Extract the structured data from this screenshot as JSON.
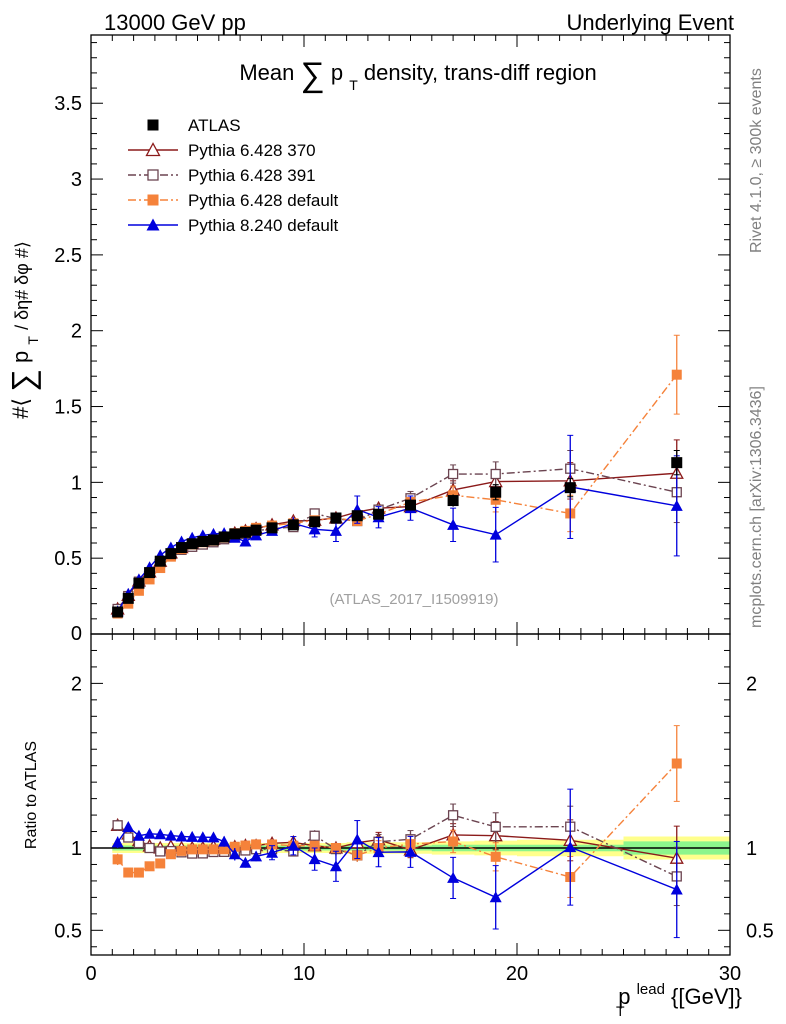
{
  "header": {
    "energy_label": "13000 GeV pp",
    "process_label": "Underlying Event"
  },
  "side_labels": {
    "rivet": "Rivet 4.1.0, ≥ 300k events",
    "mcplots": "mcplots.cern.ch [arXiv:1306.3436]"
  },
  "chart_data": {
    "type": "scatter",
    "title_parts": {
      "before": "Mean",
      "sum": "∑",
      "p": "p",
      "sub": "T",
      "after": "density, trans-diff region"
    },
    "analysis_label": "(ATLAS_2017_I1509919)",
    "xlabel": {
      "main": "p",
      "sup": "lead",
      "sub": "T",
      "unit": "{[GeV]}"
    },
    "ylabel": {
      "open": "#⟨",
      "sum": "∑",
      "p": "p",
      "sub": "T",
      "rest": "/ δη# δφ #⟩"
    },
    "ratio_ylabel": "Ratio to ATLAS",
    "xlim": [
      0,
      30
    ],
    "ylim": [
      0,
      3.95
    ],
    "ratio_ylim": [
      0.35,
      2.3
    ],
    "x_ticks": [
      0,
      10,
      20,
      30
    ],
    "y_ticks": [
      0.5,
      1,
      1.5,
      2,
      2.5,
      3,
      3.5
    ],
    "y_tick_labels": [
      "0.5",
      "1",
      "1.5",
      "2",
      "2.5",
      "3",
      "3.5"
    ],
    "y_zero_label": "0",
    "ratio_ticks": [
      0.5,
      1,
      2
    ],
    "ratio_tick_labels": [
      "0.5",
      "1",
      "2"
    ],
    "legend_position": "top-left",
    "series": [
      {
        "name": "ATLAS",
        "color": "#000000",
        "marker": "filled-square",
        "line": "none",
        "x": [
          1.25,
          1.75,
          2.25,
          2.75,
          3.25,
          3.75,
          4.25,
          4.75,
          5.25,
          5.75,
          6.25,
          6.75,
          7.25,
          7.75,
          8.5,
          9.5,
          10.5,
          11.5,
          12.5,
          13.5,
          15,
          17,
          19,
          22.5,
          27.5
        ],
        "y": [
          0.145,
          0.235,
          0.335,
          0.405,
          0.48,
          0.53,
          0.57,
          0.595,
          0.61,
          0.62,
          0.64,
          0.66,
          0.67,
          0.685,
          0.7,
          0.72,
          0.74,
          0.765,
          0.78,
          0.79,
          0.85,
          0.88,
          0.935,
          0.965,
          1.13
        ],
        "yerr": [
          0.01,
          0.01,
          0.01,
          0.01,
          0.01,
          0.01,
          0.01,
          0.01,
          0.01,
          0.01,
          0.01,
          0.01,
          0.01,
          0.01,
          0.015,
          0.02,
          0.02,
          0.025,
          0.025,
          0.03,
          0.035,
          0.04,
          0.05,
          0.06,
          0.08
        ]
      },
      {
        "name": "Pythia 6.428 370",
        "color": "#8b1a1a",
        "marker": "open-triangle",
        "line": "solid",
        "x": [
          1.25,
          1.75,
          2.25,
          2.75,
          3.25,
          3.75,
          4.25,
          4.75,
          5.25,
          5.75,
          6.25,
          6.75,
          7.25,
          7.75,
          8.5,
          9.5,
          10.5,
          11.5,
          12.5,
          13.5,
          15,
          17,
          19,
          22.5,
          27.5
        ],
        "y": [
          0.165,
          0.255,
          0.35,
          0.41,
          0.48,
          0.535,
          0.57,
          0.595,
          0.61,
          0.625,
          0.64,
          0.665,
          0.68,
          0.695,
          0.72,
          0.745,
          0.75,
          0.765,
          0.805,
          0.83,
          0.84,
          0.95,
          1.005,
          1.01,
          1.06
        ],
        "yerr": [
          0.005,
          0.005,
          0.005,
          0.005,
          0.005,
          0.005,
          0.005,
          0.005,
          0.005,
          0.005,
          0.01,
          0.01,
          0.01,
          0.01,
          0.015,
          0.02,
          0.02,
          0.025,
          0.03,
          0.035,
          0.04,
          0.06,
          0.08,
          0.12,
          0.22
        ]
      },
      {
        "name": "Pythia 6.428 391",
        "color": "#6b4450",
        "marker": "open-square",
        "line": "dashdot",
        "x": [
          1.25,
          1.75,
          2.25,
          2.75,
          3.25,
          3.75,
          4.25,
          4.75,
          5.25,
          5.75,
          6.25,
          6.75,
          7.25,
          7.75,
          8.5,
          9.5,
          10.5,
          11.5,
          12.5,
          13.5,
          15,
          17,
          19,
          22.5,
          27.5
        ],
        "y": [
          0.165,
          0.25,
          0.345,
          0.405,
          0.47,
          0.52,
          0.555,
          0.575,
          0.59,
          0.605,
          0.625,
          0.645,
          0.66,
          0.68,
          0.695,
          0.705,
          0.795,
          0.76,
          0.745,
          0.82,
          0.895,
          1.055,
          1.055,
          1.09,
          0.935
        ],
        "yerr": [
          0.005,
          0.005,
          0.005,
          0.005,
          0.005,
          0.005,
          0.005,
          0.005,
          0.005,
          0.005,
          0.01,
          0.01,
          0.01,
          0.01,
          0.015,
          0.02,
          0.025,
          0.03,
          0.03,
          0.035,
          0.045,
          0.06,
          0.08,
          0.12,
          0.2
        ]
      },
      {
        "name": "Pythia 6.428 default",
        "color": "#f5823a",
        "marker": "filled-square",
        "line": "dashdot",
        "x": [
          1.25,
          1.75,
          2.25,
          2.75,
          3.25,
          3.75,
          4.25,
          4.75,
          5.25,
          5.75,
          6.25,
          6.75,
          7.25,
          7.75,
          8.5,
          9.5,
          10.5,
          11.5,
          12.5,
          13.5,
          15,
          17,
          19,
          22.5,
          27.5
        ],
        "y": [
          0.135,
          0.2,
          0.285,
          0.36,
          0.435,
          0.51,
          0.56,
          0.59,
          0.605,
          0.615,
          0.635,
          0.665,
          0.68,
          0.7,
          0.715,
          0.73,
          0.75,
          0.765,
          0.745,
          0.79,
          0.87,
          0.915,
          0.885,
          0.795,
          1.71
        ],
        "yerr": [
          0.005,
          0.005,
          0.005,
          0.005,
          0.005,
          0.005,
          0.005,
          0.005,
          0.005,
          0.005,
          0.01,
          0.01,
          0.01,
          0.01,
          0.015,
          0.02,
          0.02,
          0.025,
          0.03,
          0.035,
          0.04,
          0.06,
          0.08,
          0.12,
          0.26
        ]
      },
      {
        "name": "Pythia 8.240 default",
        "color": "#0000dd",
        "marker": "filled-triangle",
        "line": "solid",
        "x": [
          1.25,
          1.75,
          2.25,
          2.75,
          3.25,
          3.75,
          4.25,
          4.75,
          5.25,
          5.75,
          6.25,
          6.75,
          7.25,
          7.75,
          8.5,
          9.5,
          10.5,
          11.5,
          12.5,
          13.5,
          15,
          17,
          19,
          22.5,
          27.5
        ],
        "y": [
          0.15,
          0.265,
          0.36,
          0.44,
          0.52,
          0.57,
          0.61,
          0.635,
          0.65,
          0.66,
          0.665,
          0.635,
          0.61,
          0.65,
          0.68,
          0.73,
          0.69,
          0.68,
          0.82,
          0.77,
          0.83,
          0.72,
          0.655,
          0.97,
          0.845
        ],
        "yerr": [
          0.005,
          0.005,
          0.005,
          0.005,
          0.005,
          0.005,
          0.005,
          0.01,
          0.01,
          0.01,
          0.02,
          0.025,
          0.02,
          0.02,
          0.03,
          0.04,
          0.05,
          0.07,
          0.09,
          0.07,
          0.08,
          0.11,
          0.18,
          0.34,
          0.33
        ]
      }
    ],
    "ratio_bands": [
      {
        "name": "stat uncertainty",
        "color": "#8cf58c",
        "x": [
          1,
          2,
          3,
          4,
          5,
          6,
          7,
          8,
          9,
          10,
          11,
          12,
          13,
          14,
          16,
          18,
          20,
          25,
          30
        ],
        "halfwidth": [
          0.015,
          0.015,
          0.015,
          0.015,
          0.015,
          0.015,
          0.015,
          0.015,
          0.015,
          0.015,
          0.015,
          0.015,
          0.015,
          0.015,
          0.02,
          0.02,
          0.02,
          0.04,
          0.04
        ]
      },
      {
        "name": "total uncertainty",
        "color": "#ffff8c",
        "x": [
          1,
          2,
          3,
          4,
          5,
          6,
          7,
          8,
          9,
          10,
          11,
          12,
          13,
          14,
          16,
          18,
          20,
          25,
          30
        ],
        "halfwidth": [
          0.03,
          0.03,
          0.03,
          0.03,
          0.03,
          0.03,
          0.03,
          0.03,
          0.03,
          0.03,
          0.03,
          0.035,
          0.035,
          0.035,
          0.04,
          0.045,
          0.05,
          0.07,
          0.07
        ]
      }
    ]
  }
}
